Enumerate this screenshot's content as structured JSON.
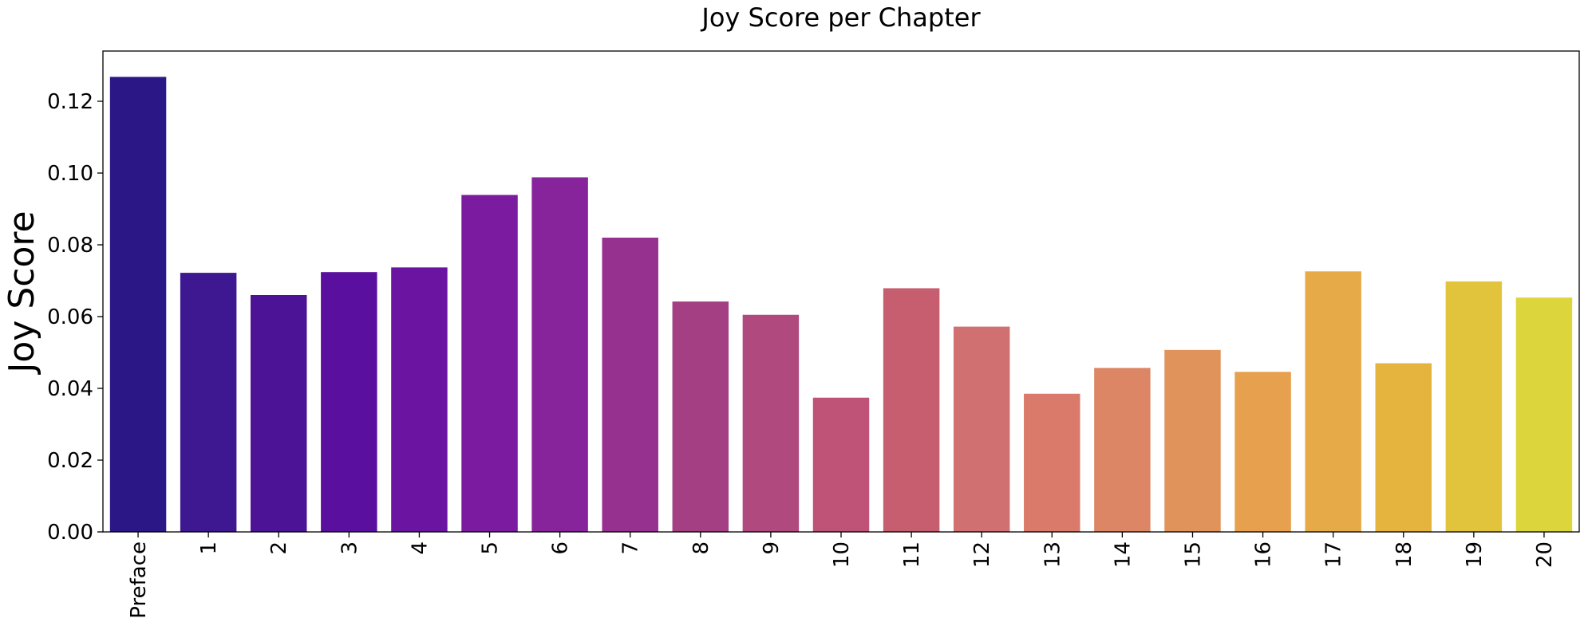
{
  "chart_data": {
    "type": "bar",
    "title": "Joy Score per Chapter",
    "xlabel": "",
    "ylabel": "Joy Score",
    "categories": [
      "Preface",
      "1",
      "2",
      "3",
      "4",
      "5",
      "6",
      "7",
      "8",
      "9",
      "10",
      "11",
      "12",
      "13",
      "14",
      "15",
      "16",
      "17",
      "18",
      "19",
      "20"
    ],
    "values": [
      0.1268,
      0.0722,
      0.066,
      0.0724,
      0.0737,
      0.0939,
      0.0988,
      0.082,
      0.0642,
      0.0605,
      0.0374,
      0.0679,
      0.0572,
      0.0385,
      0.0457,
      0.0507,
      0.0446,
      0.0726,
      0.047,
      0.0698,
      0.0653
    ],
    "ylim": [
      0,
      0.134
    ],
    "yticks": [
      "0.00",
      "0.02",
      "0.04",
      "0.06",
      "0.08",
      "0.10",
      "0.12"
    ],
    "grid": false,
    "colormap": "plasma",
    "colors": [
      "#2c1786",
      "#3e1890",
      "#4c1396",
      "#5a0f9e",
      "#6b14a1",
      "#7a1ba0",
      "#88249b",
      "#96318f",
      "#a43f84",
      "#b0497d",
      "#be5377",
      "#c75e6f",
      "#d07070",
      "#da7a6b",
      "#dd8666",
      "#e0945c",
      "#e6a04e",
      "#e6ab48",
      "#e4b43e",
      "#e2c43c",
      "#ddd53c"
    ]
  }
}
